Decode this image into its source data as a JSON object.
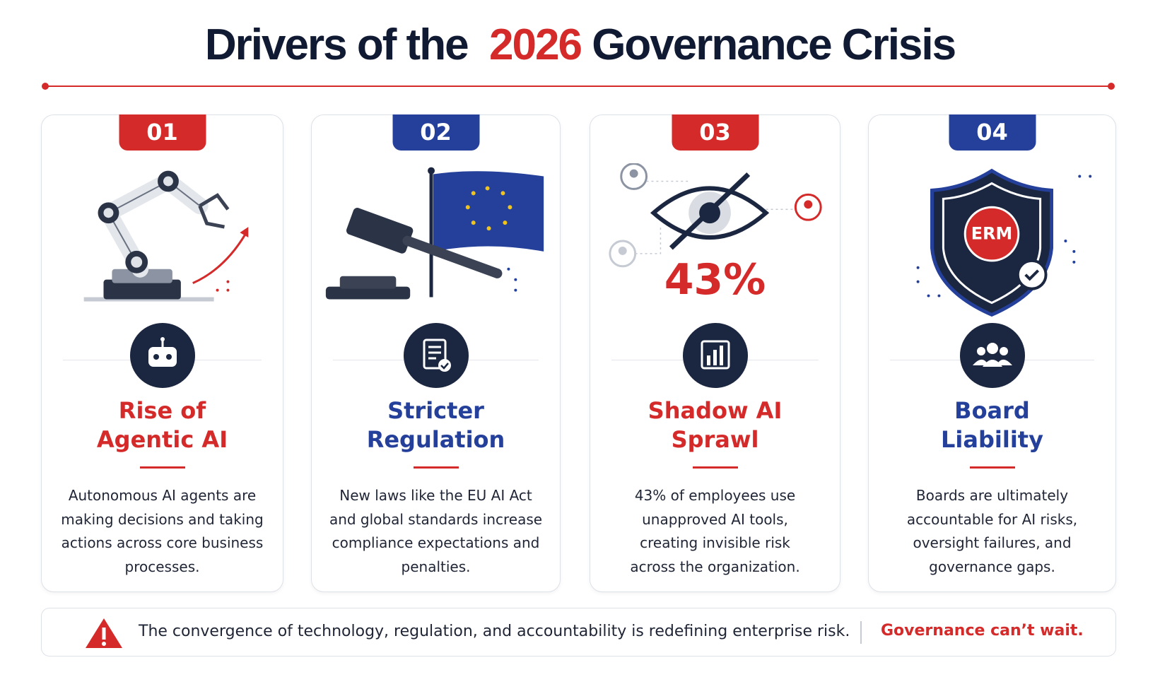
{
  "title": {
    "before": "Drivers of the",
    "highlight": "2026",
    "after": "Governance Crisis"
  },
  "cards": [
    {
      "number": "01",
      "heading": [
        "Rise of",
        "Agentic AI"
      ],
      "body": [
        "Autonomous AI agents are",
        "making decisions and taking",
        "actions across core business",
        "processes."
      ]
    },
    {
      "number": "02",
      "heading": [
        "Stricter",
        "Regulation"
      ],
      "body": [
        "New laws like the EU AI Act",
        "and global standards increase",
        "compliance expectations and",
        "penalties."
      ]
    },
    {
      "number": "03",
      "heading": [
        "Shadow AI",
        "Sprawl"
      ],
      "stat": "43%",
      "body": [
        "43% of employees use",
        "unapproved AI tools,",
        "creating invisible risk",
        "across the organization."
      ]
    },
    {
      "number": "04",
      "heading": [
        "Board",
        "Liability"
      ],
      "emblem": "ERM",
      "body": [
        "Boards are ultimately",
        "accountable for AI risks,",
        "oversight failures, and",
        "governance gaps."
      ]
    }
  ],
  "footer": {
    "message": "The convergence of technology, regulation, and accountability is redefining enterprise risk.",
    "callout": "Governance can’t wait."
  }
}
